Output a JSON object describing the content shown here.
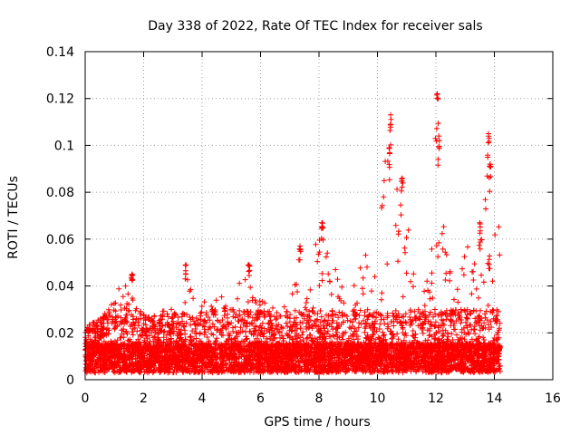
{
  "chart_data": {
    "type": "scatter",
    "title": "Day 338 of 2022, Rate Of TEC Index for receiver sals",
    "xlabel": "GPS time / hours",
    "ylabel": "ROTI / TECUs",
    "xlim": [
      0,
      16
    ],
    "ylim": [
      0,
      0.14
    ],
    "xticks": [
      0,
      2,
      4,
      6,
      8,
      10,
      12,
      14,
      16
    ],
    "xtick_labels": [
      "0",
      "2",
      "4",
      "6",
      "8",
      "10",
      "12",
      "14",
      "16"
    ],
    "yticks": [
      0,
      0.02,
      0.04,
      0.06,
      0.08,
      0.1,
      0.12,
      0.14
    ],
    "ytick_labels": [
      "0",
      "0.02",
      "0.04",
      "0.06",
      "0.08",
      "0.1",
      "0.12",
      "0.14"
    ],
    "grid": true,
    "marker": "+",
    "color": "#ff0000",
    "series": [
      {
        "name": "ROTI",
        "envelope_hours": [
          0.0,
          0.2,
          0.5,
          0.8,
          1.0,
          1.3,
          1.5,
          1.7,
          2.0,
          2.5,
          2.8,
          3.0,
          3.3,
          3.5,
          3.8,
          4.0,
          4.3,
          4.6,
          5.0,
          5.3,
          5.6,
          6.0,
          6.3,
          6.6,
          7.0,
          7.3,
          7.6,
          8.0,
          8.2,
          8.5,
          8.8,
          9.0,
          9.3,
          9.6,
          10.0,
          10.3,
          10.6,
          10.9,
          11.2,
          11.5,
          11.8,
          12.0,
          12.3,
          12.6,
          12.9,
          13.2,
          13.5,
          13.8,
          14.0,
          14.2
        ],
        "envelope_roti": [
          0.022,
          0.024,
          0.026,
          0.03,
          0.038,
          0.042,
          0.045,
          0.032,
          0.028,
          0.027,
          0.032,
          0.03,
          0.026,
          0.049,
          0.027,
          0.034,
          0.032,
          0.036,
          0.034,
          0.042,
          0.049,
          0.036,
          0.03,
          0.034,
          0.03,
          0.057,
          0.038,
          0.066,
          0.06,
          0.05,
          0.042,
          0.03,
          0.048,
          0.055,
          0.06,
          0.111,
          0.09,
          0.086,
          0.05,
          0.035,
          0.046,
          0.122,
          0.06,
          0.038,
          0.05,
          0.067,
          0.06,
          0.104,
          0.08,
          0.063
        ],
        "baseline_roti": 0.012,
        "min_roti": 0.003,
        "samples_per_hour": 420
      }
    ],
    "annotated_peaks": [
      {
        "x": 1.6,
        "y": 0.045
      },
      {
        "x": 3.45,
        "y": 0.049
      },
      {
        "x": 5.6,
        "y": 0.049
      },
      {
        "x": 7.35,
        "y": 0.057
      },
      {
        "x": 8.1,
        "y": 0.067
      },
      {
        "x": 10.4,
        "y": 0.099
      },
      {
        "x": 10.45,
        "y": 0.113
      },
      {
        "x": 10.85,
        "y": 0.086
      },
      {
        "x": 12.05,
        "y": 0.122
      },
      {
        "x": 12.1,
        "y": 0.104
      },
      {
        "x": 13.5,
        "y": 0.067
      },
      {
        "x": 13.8,
        "y": 0.105
      },
      {
        "x": 13.85,
        "y": 0.092
      }
    ]
  }
}
